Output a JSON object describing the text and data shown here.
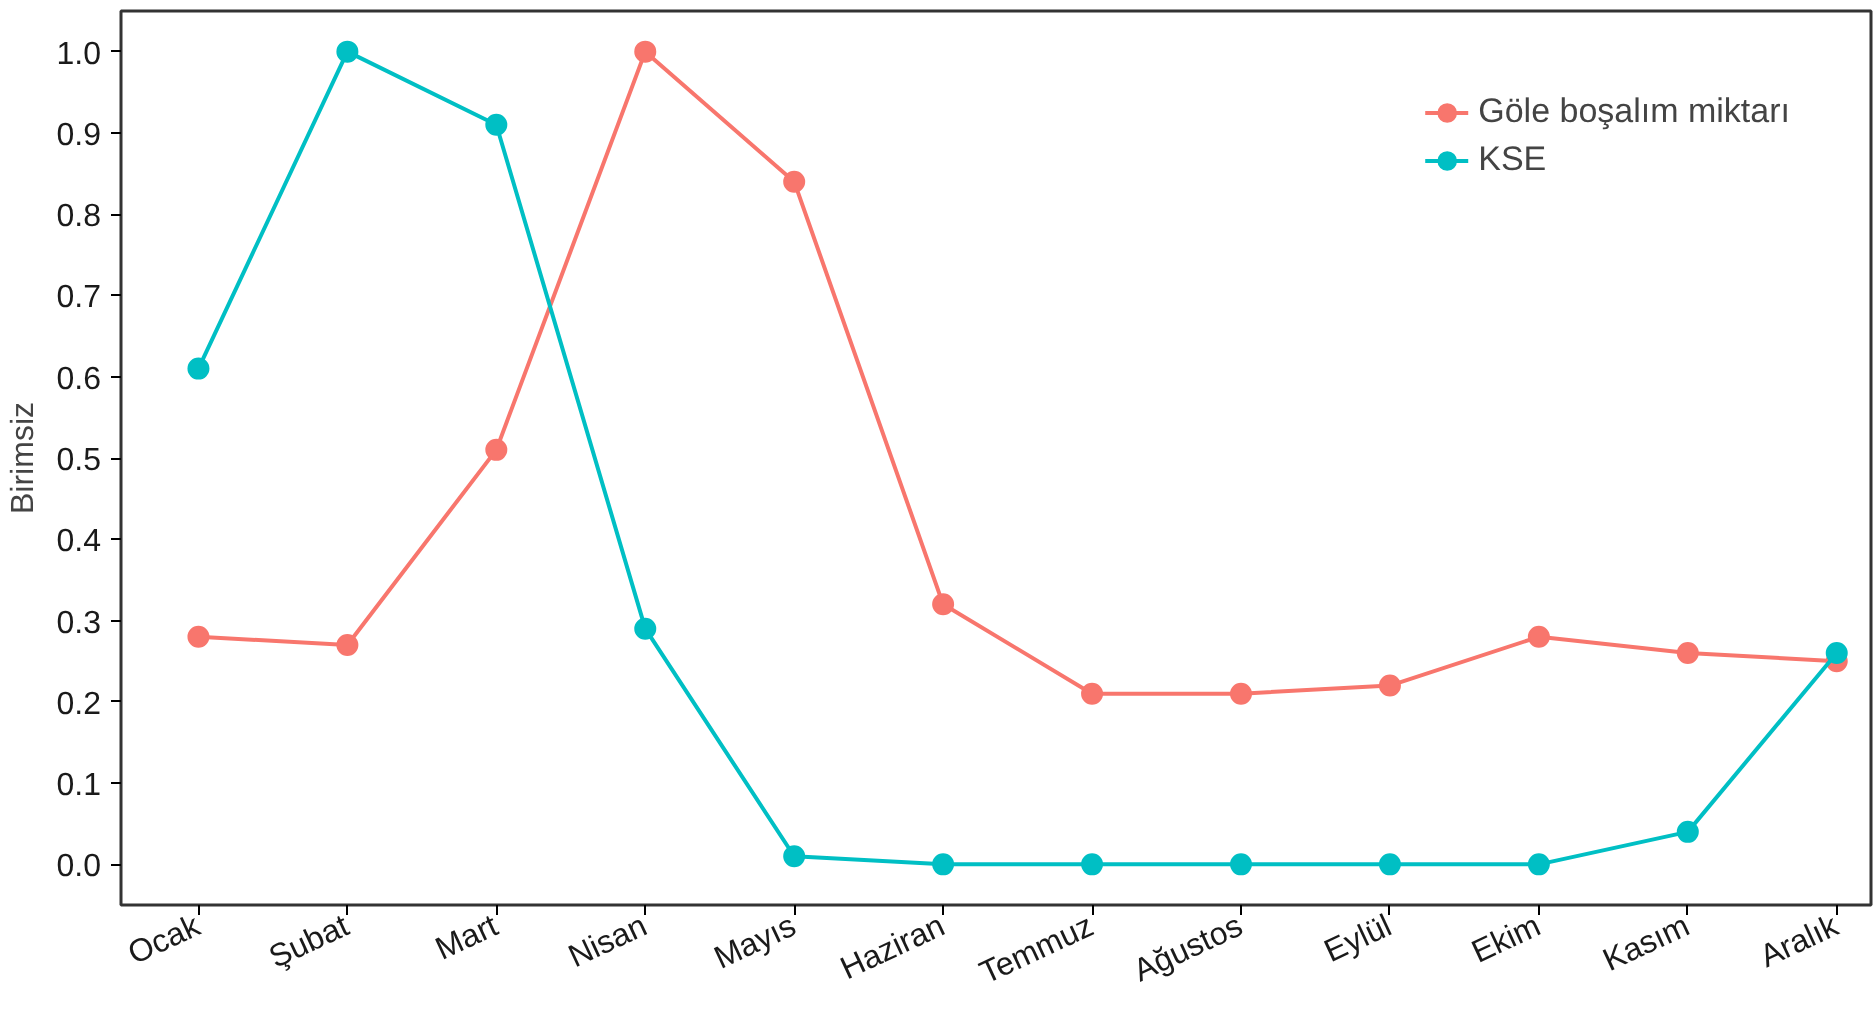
{
  "chart_data": {
    "type": "line",
    "ylabel": "Birimsiz",
    "categories": [
      "Ocak",
      "Şubat",
      "Mart",
      "Nisan",
      "Mayıs",
      "Haziran",
      "Temmuz",
      "Ağustos",
      "Eylül",
      "Ekim",
      "Kasım",
      "Aralık"
    ],
    "series": [
      {
        "name": "Göle boşalım miktarı",
        "color": "#f8766d",
        "values": [
          0.28,
          0.27,
          0.51,
          1.0,
          0.84,
          0.32,
          0.21,
          0.21,
          0.22,
          0.28,
          0.26,
          0.25
        ]
      },
      {
        "name": "KSE",
        "color": "#00bfc4",
        "values": [
          0.61,
          1.0,
          0.91,
          0.29,
          0.01,
          0.0,
          0.0,
          0.0,
          0.0,
          0.0,
          0.04,
          0.26
        ]
      }
    ],
    "ylim": [
      -0.05,
      1.05
    ],
    "yticks": [
      {
        "value": 0,
        "label": "0.0"
      },
      0.1,
      0.2,
      0.3,
      0.4,
      0.5,
      0.6,
      0.7,
      0.8,
      0.9,
      {
        "value": 1,
        "label": "1.0"
      }
    ],
    "grid": false,
    "legend": "top right",
    "marker": "circle",
    "line_style": "solid"
  }
}
